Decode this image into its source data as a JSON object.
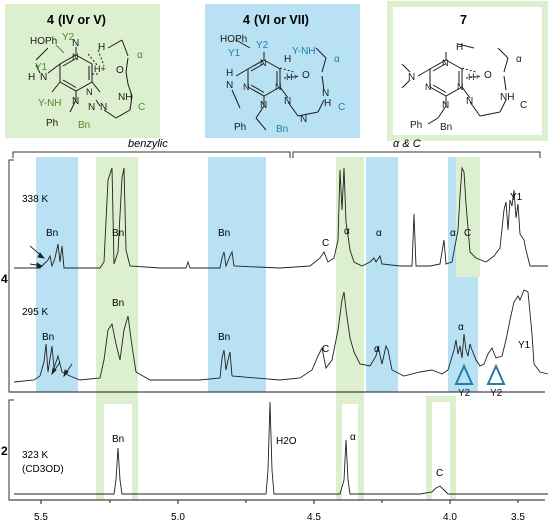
{
  "colors": {
    "green_fill": "#dcefcf",
    "green_stroke": "#b5d99f",
    "blue_fill": "#b8e2f4",
    "green_text": "#4f8a2f",
    "blue_text": "#1f7fa6",
    "black": "#1a1a1a"
  },
  "structures": {
    "left": {
      "title_num": "4",
      "title_rest": "(IV or V)",
      "labels": [
        "HOPh",
        "Y2",
        "Y1",
        "N",
        "H",
        "N",
        "N",
        "N",
        "N",
        "H",
        "H+",
        "O",
        "α",
        "NH",
        "C",
        "Y-NH",
        "Ph",
        "Bn",
        "N",
        "N"
      ]
    },
    "middle": {
      "title_num": "4",
      "title_rest": "(VI or VII)",
      "labels": [
        "HOPh",
        "Y2",
        "Y1",
        "Y-NH",
        "H",
        "N",
        "N",
        "N",
        "N",
        "N",
        "H",
        "H+",
        "O",
        "α",
        "N",
        "H",
        "C",
        "Ph",
        "Bn",
        "N",
        "N"
      ]
    },
    "right": {
      "title_num": "7",
      "labels": [
        "N",
        "N",
        "N",
        "N",
        "H",
        "H+",
        "O",
        "α",
        "NH",
        "C",
        "N",
        "Ph",
        "Bn",
        "N"
      ]
    }
  },
  "spectra": {
    "region_labels": {
      "benzylic": "benzylic",
      "alpha_c": "α & C"
    },
    "compound_4": "4",
    "compound_2": "2",
    "temps": {
      "t338": "338 K",
      "t295": "295 K",
      "t323": "323 K",
      "solvent": "(CD3OD)"
    },
    "peak_labels": {
      "bn": "Bn",
      "c": "C",
      "alpha": "α",
      "y1": "Y1",
      "y2": "Y2",
      "h2o": "H2O"
    },
    "x_axis": {
      "ticks": [
        "5.5",
        "5.0",
        "4.5",
        "4.0",
        "3.5"
      ]
    }
  }
}
